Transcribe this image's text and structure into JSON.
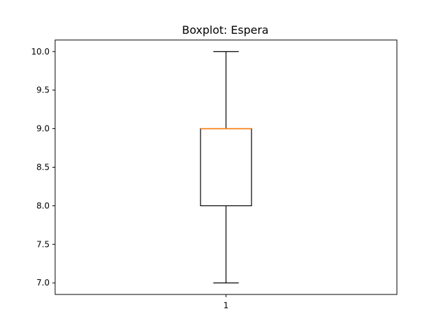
{
  "chart_data": {
    "type": "box",
    "title": "Boxplot: Espera",
    "xlabel": "",
    "ylabel": "",
    "categories": [
      "1"
    ],
    "box": {
      "whisker_low": 7.0,
      "q1": 8.0,
      "median": 9.0,
      "q3": 9.0,
      "whisker_high": 10.0
    },
    "ylim": [
      6.85,
      10.15
    ],
    "yticks": [
      7.0,
      7.5,
      8.0,
      8.5,
      9.0,
      9.5,
      10.0
    ],
    "ytick_labels": [
      "7.0",
      "7.5",
      "8.0",
      "8.5",
      "9.0",
      "9.5",
      "10.0"
    ],
    "grid": false,
    "colors": {
      "box": "#000000",
      "median": "#ff7f0e"
    }
  }
}
